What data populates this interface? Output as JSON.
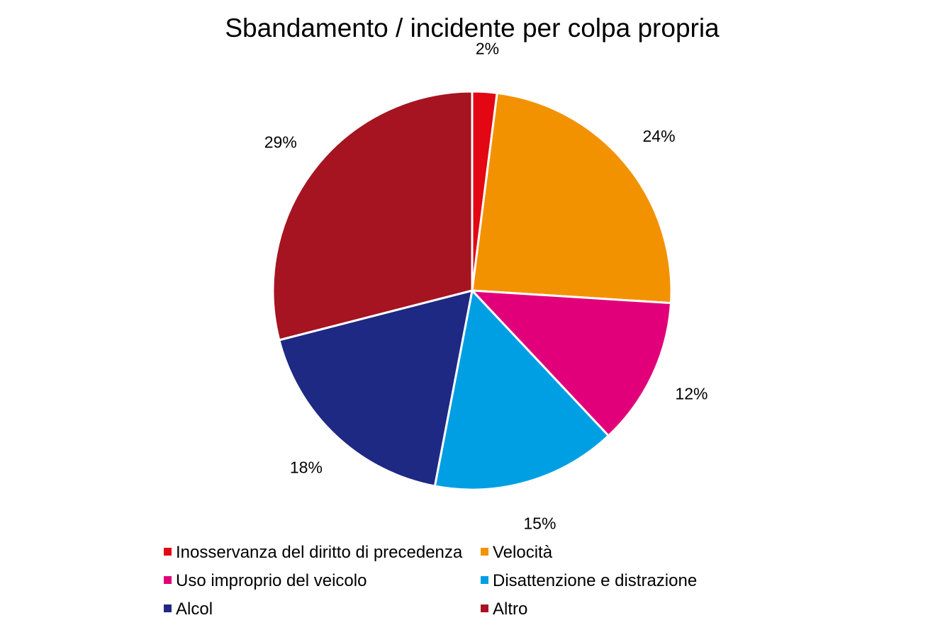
{
  "chart_data": {
    "type": "pie",
    "title": "Sbandamento / incidente per colpa propria",
    "slices": [
      {
        "label": "Inosservanza del diritto di precedenza",
        "value": 2,
        "display": "2%",
        "color": "#E30613"
      },
      {
        "label": "Velocità",
        "value": 24,
        "display": "24%",
        "color": "#F39200"
      },
      {
        "label": "Uso improprio del veicolo",
        "value": 12,
        "display": "12%",
        "color": "#E2007A"
      },
      {
        "label": "Disattenzione e distrazione",
        "value": 15,
        "display": "15%",
        "color": "#009FE3"
      },
      {
        "label": "Alcol",
        "value": 18,
        "display": "18%",
        "color": "#1D2983"
      },
      {
        "label": "Altro",
        "value": 29,
        "display": "29%",
        "color": "#A51420"
      }
    ],
    "legend_position": "bottom",
    "start": "top",
    "direction": "clockwise"
  }
}
